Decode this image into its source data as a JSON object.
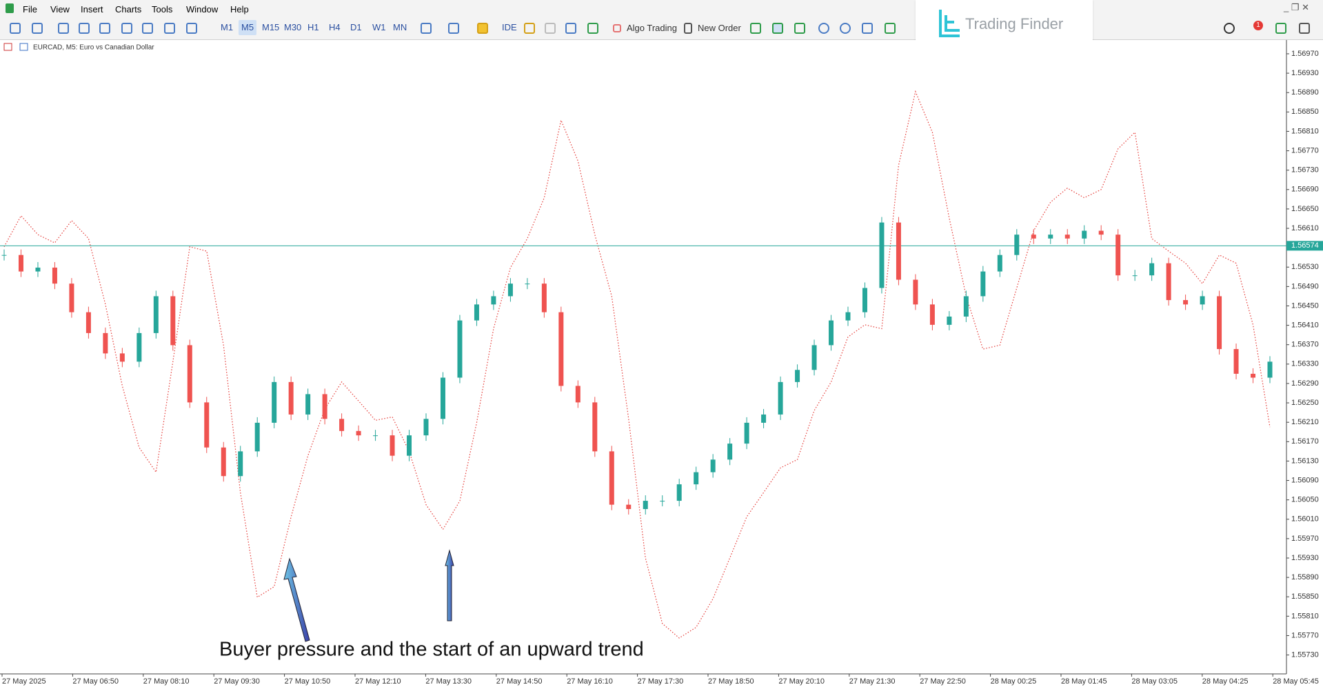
{
  "menu": [
    "File",
    "View",
    "Insert",
    "Charts",
    "Tools",
    "Window",
    "Help"
  ],
  "toolbar": {
    "timeframes": [
      "M1",
      "M5",
      "M15",
      "M30",
      "H1",
      "H4",
      "D1",
      "W1",
      "MN"
    ],
    "active_timeframe": "M5",
    "ide": "IDE",
    "algo_trading": "Algo Trading",
    "new_order": "New Order"
  },
  "logo": "Trading Finder",
  "notification_count": 1,
  "chart_data": {
    "type": "candlestick",
    "title": "EURCAD, M5:  Euro vs Canadian Dollar",
    "annotation": "Buyer pressure and the start of an upward trend",
    "x_labels": [
      "27 May 2025",
      "27 May 06:50",
      "27 May 08:10",
      "27 May 09:30",
      "27 May 10:50",
      "27 May 12:10",
      "27 May 13:30",
      "27 May 14:50",
      "27 May 16:10",
      "27 May 17:30",
      "27 May 18:50",
      "27 May 20:10",
      "27 May 21:30",
      "27 May 22:50",
      "28 May 00:25",
      "28 May 01:45",
      "28 May 03:05",
      "28 May 04:25",
      "28 May 05:45"
    ],
    "up_color": "#26a69a",
    "down_color": "#ef5350",
    "values": [
      1.56555,
      1.56521,
      1.56529,
      1.56496,
      1.56437,
      1.56394,
      1.56352,
      1.56335,
      1.56394,
      1.5647,
      1.56369,
      1.56251,
      1.56158,
      1.56099,
      1.5615,
      1.56209,
      1.56293,
      1.56226,
      1.56268,
      1.56217,
      1.56192,
      1.56183,
      1.56183,
      1.56141,
      1.56183,
      1.56217,
      1.56302,
      1.5642,
      1.56453,
      1.5647,
      1.56496,
      1.56496,
      1.56437,
      1.56285,
      1.56251,
      1.5615,
      1.5604,
      1.56031,
      1.56048,
      1.56048,
      1.56082,
      1.56107,
      1.56133,
      1.56166,
      1.56209,
      1.56226,
      1.56293,
      1.56318,
      1.56369,
      1.5642,
      1.56437,
      1.56487,
      1.56622,
      1.56504,
      1.56453,
      1.56411,
      1.56428,
      1.5647,
      1.56521,
      1.56555,
      1.56597,
      1.56589,
      1.56597,
      1.56589,
      1.56605,
      1.56597,
      1.56513,
      1.56513,
      1.56538,
      1.56462,
      1.56453,
      1.5647,
      1.56361,
      1.5631,
      1.56302,
      1.56335
    ],
    "indicator": {
      "color": "#e53935",
      "values": [
        1.56572,
        1.56636,
        1.56597,
        1.5658,
        1.56626,
        1.56589,
        1.56453,
        1.56285,
        1.56158,
        1.56107,
        1.56335,
        1.56572,
        1.56563,
        1.56369,
        1.56065,
        1.55849,
        1.55871,
        1.56015,
        1.56141,
        1.56237,
        1.56293,
        1.56254,
        1.56214,
        1.56221,
        1.5615,
        1.5604,
        1.55989,
        1.56048,
        1.56209,
        1.56403,
        1.56529,
        1.56589,
        1.56673,
        1.56833,
        1.56749,
        1.56597,
        1.5647,
        1.56217,
        1.5593,
        1.55795,
        1.55765,
        1.55787,
        1.55846,
        1.5593,
        1.56015,
        1.56065,
        1.56116,
        1.56133,
        1.56234,
        1.56293,
        1.56386,
        1.56411,
        1.56403,
        1.5674,
        1.56892,
        1.56808,
        1.56631,
        1.5647,
        1.56361,
        1.56369,
        1.56487,
        1.56605,
        1.56664,
        1.56693,
        1.56673,
        1.5669,
        1.56774,
        1.56808,
        1.56589,
        1.56563,
        1.56538,
        1.56496,
        1.56555,
        1.56538,
        1.56411,
        1.562
      ]
    },
    "hline": {
      "value": 1.56574,
      "color": "#26a69a"
    },
    "ylim": [
      1.55691,
      1.56997
    ],
    "yticks": [
      {
        "value": 1.5573,
        "label": "1.55730"
      },
      {
        "value": 1.5577,
        "label": "1.55770"
      },
      {
        "value": 1.5581,
        "label": "1.55810"
      },
      {
        "value": 1.5585,
        "label": "1.55850"
      },
      {
        "value": 1.5589,
        "label": "1.55890"
      },
      {
        "value": 1.5593,
        "label": "1.55930"
      },
      {
        "value": 1.5597,
        "label": "1.55970"
      },
      {
        "value": 1.5601,
        "label": "1.56010"
      },
      {
        "value": 1.5605,
        "label": "1.56050"
      },
      {
        "value": 1.5609,
        "label": "1.56090"
      },
      {
        "value": 1.5613,
        "label": "1.56130"
      },
      {
        "value": 1.5617,
        "label": "1.56170"
      },
      {
        "value": 1.5621,
        "label": "1.56210"
      },
      {
        "value": 1.5625,
        "label": "1.56250"
      },
      {
        "value": 1.5629,
        "label": "1.56290"
      },
      {
        "value": 1.5633,
        "label": "1.56330"
      },
      {
        "value": 1.5637,
        "label": "1.56370"
      },
      {
        "value": 1.5641,
        "label": "1.56410"
      },
      {
        "value": 1.5645,
        "label": "1.56450"
      },
      {
        "value": 1.5649,
        "label": "1.56490"
      },
      {
        "value": 1.5653,
        "label": "1.56530"
      },
      {
        "value": 1.5661,
        "label": "1.56610"
      },
      {
        "value": 1.5665,
        "label": "1.56650"
      },
      {
        "value": 1.5669,
        "label": "1.56690"
      },
      {
        "value": 1.5673,
        "label": "1.56730"
      },
      {
        "value": 1.5677,
        "label": "1.56770"
      },
      {
        "value": 1.5681,
        "label": "1.56810"
      },
      {
        "value": 1.5685,
        "label": "1.56850"
      },
      {
        "value": 1.5689,
        "label": "1.56890"
      },
      {
        "value": 1.5693,
        "label": "1.56930"
      },
      {
        "value": 1.5697,
        "label": "1.56970"
      }
    ]
  }
}
